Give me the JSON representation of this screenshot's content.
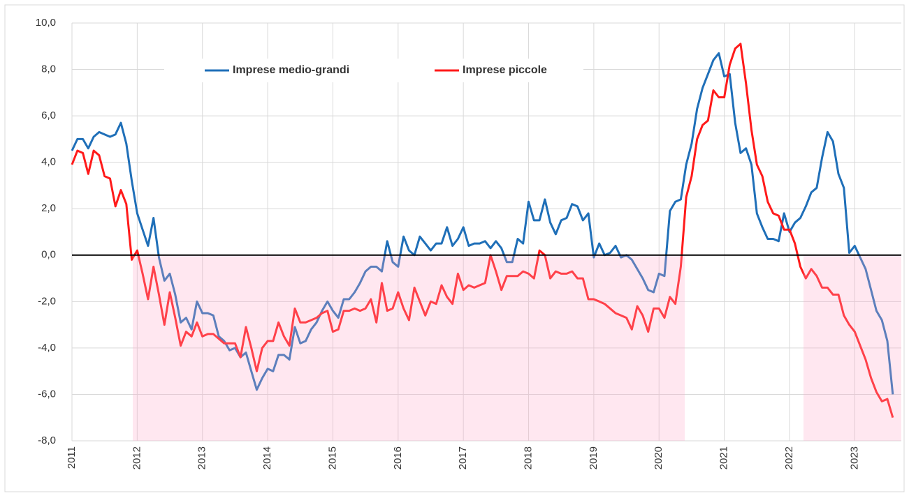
{
  "chart_data": {
    "type": "line",
    "categories": [
      "2011",
      null,
      null,
      null,
      null,
      null,
      null,
      null,
      null,
      null,
      null,
      null,
      "2012",
      null,
      null,
      null,
      null,
      null,
      null,
      null,
      null,
      null,
      null,
      null,
      "2013",
      null,
      null,
      null,
      null,
      null,
      null,
      null,
      null,
      null,
      null,
      null,
      "2014",
      null,
      null,
      null,
      null,
      null,
      null,
      null,
      null,
      null,
      null,
      null,
      "2015",
      null,
      null,
      null,
      null,
      null,
      null,
      null,
      null,
      null,
      null,
      null,
      "2016",
      null,
      null,
      null,
      null,
      null,
      null,
      null,
      null,
      null,
      null,
      null,
      "2017",
      null,
      null,
      null,
      null,
      null,
      null,
      null,
      null,
      null,
      null,
      null,
      "2018",
      null,
      null,
      null,
      null,
      null,
      null,
      null,
      null,
      null,
      null,
      null,
      "2019",
      null,
      null,
      null,
      null,
      null,
      null,
      null,
      null,
      null,
      null,
      null,
      "2020",
      null,
      null,
      null,
      null,
      null,
      null,
      null,
      null,
      null,
      null,
      null,
      "2021",
      null,
      null,
      null,
      null,
      null,
      null,
      null,
      null,
      null,
      null,
      null,
      "2022",
      null,
      null,
      null,
      null,
      null,
      null,
      null,
      null,
      null,
      null,
      null,
      "2023",
      null,
      null,
      null,
      null,
      null,
      null,
      null
    ],
    "series": [
      {
        "name": "Imprese medio-grandi",
        "color": "#1f6fb8",
        "values": [
          4.5,
          5.0,
          5.0,
          4.6,
          5.1,
          5.3,
          5.2,
          5.1,
          5.2,
          5.7,
          4.8,
          3.2,
          1.8,
          1.1,
          0.4,
          1.6,
          -0.1,
          -1.1,
          -0.8,
          -1.7,
          -2.9,
          -2.7,
          -3.2,
          -2.0,
          -2.5,
          -2.5,
          -2.6,
          -3.5,
          -3.7,
          -4.1,
          -4.0,
          -4.4,
          -4.2,
          -5.0,
          -5.8,
          -5.3,
          -4.9,
          -5.0,
          -4.3,
          -4.3,
          -4.5,
          -3.1,
          -3.8,
          -3.7,
          -3.2,
          -2.9,
          -2.4,
          -2.0,
          -2.4,
          -2.7,
          -1.9,
          -1.9,
          -1.6,
          -1.2,
          -0.7,
          -0.5,
          -0.5,
          -0.7,
          0.6,
          -0.3,
          -0.5,
          0.8,
          0.2,
          0.0,
          0.8,
          0.5,
          0.2,
          0.5,
          0.5,
          1.2,
          0.4,
          0.7,
          1.2,
          0.4,
          0.5,
          0.5,
          0.6,
          0.3,
          0.6,
          0.3,
          -0.3,
          -0.3,
          0.7,
          0.5,
          2.3,
          1.5,
          1.5,
          2.4,
          1.4,
          0.9,
          1.5,
          1.6,
          2.2,
          2.1,
          1.5,
          1.8,
          -0.1,
          0.5,
          0.0,
          0.1,
          0.4,
          -0.1,
          0.0,
          -0.2,
          -0.6,
          -1.0,
          -1.5,
          -1.6,
          -0.8,
          -0.9,
          1.9,
          2.3,
          2.4,
          3.9,
          4.8,
          6.3,
          7.2,
          7.8,
          8.4,
          8.7,
          7.7,
          7.8,
          5.7,
          4.4,
          4.6,
          3.9,
          1.8,
          1.2,
          0.7,
          0.7,
          0.6,
          1.8,
          1.0,
          1.4,
          1.6,
          2.1,
          2.7,
          2.9,
          4.2,
          5.3,
          4.9,
          3.5,
          2.9,
          0.1,
          0.4,
          -0.1,
          -0.6,
          -1.5,
          -2.4,
          -2.8,
          -3.7,
          -6.0
        ]
      },
      {
        "name": "Imprese piccole",
        "color": "#ff1a1a",
        "values": [
          3.9,
          4.5,
          4.4,
          3.5,
          4.5,
          4.3,
          3.4,
          3.3,
          2.1,
          2.8,
          2.2,
          -0.2,
          0.2,
          -0.8,
          -1.9,
          -0.5,
          -1.7,
          -3.0,
          -1.6,
          -2.7,
          -3.9,
          -3.3,
          -3.5,
          -2.9,
          -3.5,
          -3.4,
          -3.4,
          -3.6,
          -3.8,
          -3.8,
          -3.8,
          -4.4,
          -3.1,
          -4.0,
          -5.0,
          -4.0,
          -3.7,
          -3.7,
          -2.9,
          -3.5,
          -3.9,
          -2.3,
          -2.9,
          -2.9,
          -2.8,
          -2.7,
          -2.5,
          -2.4,
          -3.3,
          -3.2,
          -2.4,
          -2.4,
          -2.3,
          -2.4,
          -2.3,
          -1.9,
          -2.9,
          -1.2,
          -2.4,
          -2.3,
          -1.6,
          -2.3,
          -2.8,
          -1.4,
          -2.0,
          -2.6,
          -2.0,
          -2.1,
          -1.3,
          -1.8,
          -2.1,
          -0.8,
          -1.5,
          -1.3,
          -1.4,
          -1.3,
          -1.2,
          0.0,
          -0.7,
          -1.5,
          -0.9,
          -0.9,
          -0.9,
          -0.7,
          -0.8,
          -1.0,
          0.2,
          0.0,
          -1.0,
          -0.7,
          -0.8,
          -0.8,
          -0.7,
          -1.0,
          -1.0,
          -1.9,
          -1.9,
          -2.0,
          -2.1,
          -2.3,
          -2.5,
          -2.6,
          -2.7,
          -3.2,
          -2.2,
          -2.6,
          -3.3,
          -2.3,
          -2.3,
          -2.7,
          -1.8,
          -2.1,
          -0.5,
          2.5,
          3.4,
          5.0,
          5.6,
          5.8,
          7.1,
          6.8,
          6.8,
          8.2,
          8.9,
          9.1,
          7.4,
          5.4,
          3.9,
          3.4,
          2.3,
          1.8,
          1.7,
          1.1,
          1.1,
          0.5,
          -0.5,
          -1.0,
          -0.6,
          -0.9,
          -1.4,
          -1.4,
          -1.7,
          -1.7,
          -2.6,
          -3.0,
          -3.3,
          -3.9,
          -4.5,
          -5.3,
          -5.9,
          -6.3,
          -6.2,
          -7.0
        ]
      }
    ],
    "ylim": [
      -8,
      10
    ],
    "yticks": [
      {
        "value": -8,
        "label": "-8,0"
      },
      {
        "value": -6,
        "label": "-6,0"
      },
      {
        "value": -4,
        "label": "-4,0"
      },
      {
        "value": -2,
        "label": "-2,0"
      },
      {
        "value": 0,
        "label": "0,0"
      },
      {
        "value": 2,
        "label": "2,0"
      },
      {
        "value": 4,
        "label": "4,0"
      },
      {
        "value": 6,
        "label": "6,0"
      },
      {
        "value": 8,
        "label": "8,0"
      },
      {
        "value": 10,
        "label": "10,0"
      }
    ],
    "grid": true
  }
}
